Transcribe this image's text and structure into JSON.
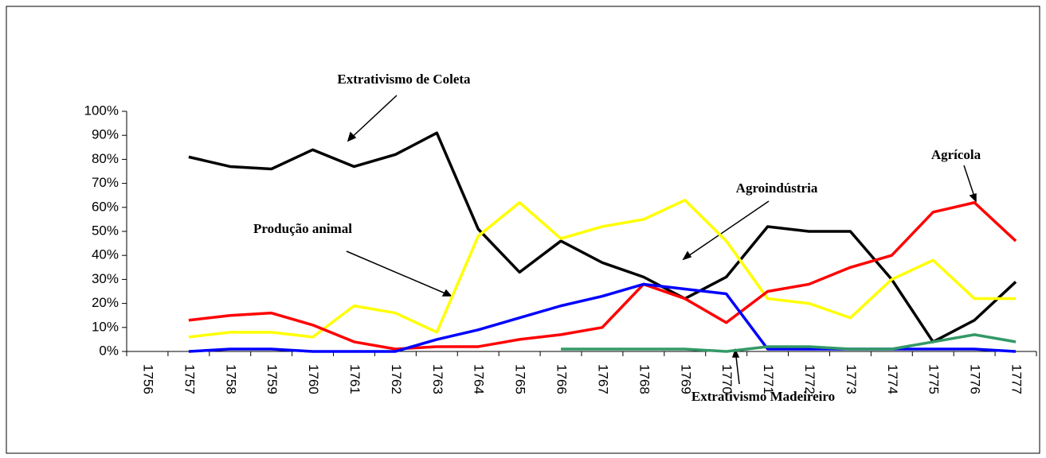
{
  "chart_data": {
    "type": "line",
    "categories": [
      "1756",
      "1757",
      "1758",
      "1759",
      "1760",
      "1761",
      "1762",
      "1763",
      "1764",
      "1765",
      "1766",
      "1767",
      "1768",
      "1769",
      "1770",
      "1771",
      "1772",
      "1773",
      "1774",
      "1775",
      "1776",
      "1777"
    ],
    "ylim": [
      0,
      100
    ],
    "yticks": [
      {
        "value": 0,
        "label": "0%"
      },
      {
        "value": 10,
        "label": "10%"
      },
      {
        "value": 20,
        "label": "20%"
      },
      {
        "value": 30,
        "label": "30%"
      },
      {
        "value": 40,
        "label": "40%"
      },
      {
        "value": 50,
        "label": "50%"
      },
      {
        "value": 60,
        "label": "60%"
      },
      {
        "value": 70,
        "label": "70%"
      },
      {
        "value": 80,
        "label": "80%"
      },
      {
        "value": 90,
        "label": "90%"
      },
      {
        "value": 100,
        "label": "100%"
      }
    ],
    "grid": false,
    "series": [
      {
        "name": "Extrativismo de Coleta",
        "color": "#000000",
        "values": [
          null,
          81,
          77,
          76,
          84,
          77,
          82,
          91,
          51,
          33,
          46,
          37,
          31,
          22,
          31,
          52,
          50,
          50,
          30,
          4,
          13,
          29
        ]
      },
      {
        "name": "Produção animal",
        "color": "#ffff00",
        "values": [
          null,
          6,
          8,
          8,
          6,
          19,
          16,
          8,
          48,
          62,
          47,
          52,
          55,
          63,
          46,
          22,
          20,
          14,
          30,
          38,
          22,
          22
        ]
      },
      {
        "name": "Agrícola",
        "color": "#ff0000",
        "values": [
          null,
          13,
          15,
          16,
          11,
          4,
          1,
          2,
          2,
          5,
          7,
          10,
          28,
          22,
          12,
          25,
          28,
          35,
          40,
          58,
          62,
          46
        ]
      },
      {
        "name": "Agroindústria",
        "color": "#0000ff",
        "values": [
          null,
          0,
          1,
          1,
          0,
          0,
          0,
          5,
          9,
          14,
          19,
          23,
          28,
          26,
          24,
          1,
          1,
          1,
          1,
          1,
          1,
          0
        ]
      },
      {
        "name": "Extrativismo Madeireiro",
        "color": "#339966",
        "values": [
          null,
          null,
          null,
          null,
          null,
          null,
          null,
          null,
          null,
          null,
          1,
          1,
          1,
          1,
          0,
          2,
          2,
          1,
          1,
          4,
          7,
          4
        ]
      }
    ]
  }
}
